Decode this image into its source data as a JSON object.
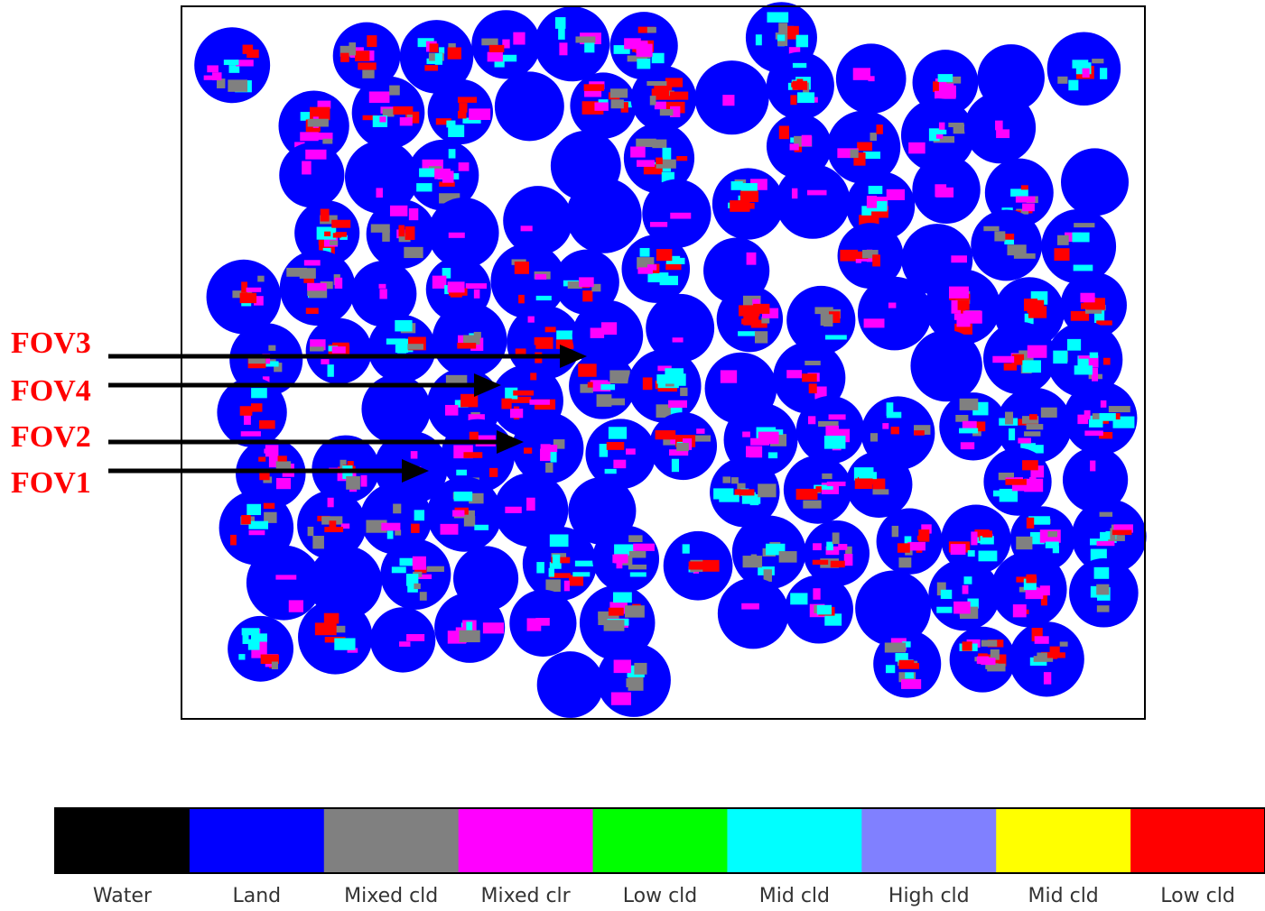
{
  "annotations": [
    {
      "label": "FOV3"
    },
    {
      "label": "FOV4"
    },
    {
      "label": "FOV2"
    },
    {
      "label": "FOV1"
    }
  ],
  "legend": {
    "items": [
      {
        "label": "Water",
        "color": "#000000"
      },
      {
        "label": "Land",
        "color": "#0000ff"
      },
      {
        "label": "Mixed cld",
        "color": "#808080"
      },
      {
        "label": "Mixed clr",
        "color": "#ff00ff"
      },
      {
        "label": "Low cld",
        "color": "#00ff00"
      },
      {
        "label": "Mid cld",
        "color": "#00ffff"
      },
      {
        "label": "High cld",
        "color": "#8080ff"
      },
      {
        "label": "Mid cld",
        "color": "#ffff00"
      },
      {
        "label": "Low cld",
        "color": "#ff0000"
      }
    ]
  }
}
